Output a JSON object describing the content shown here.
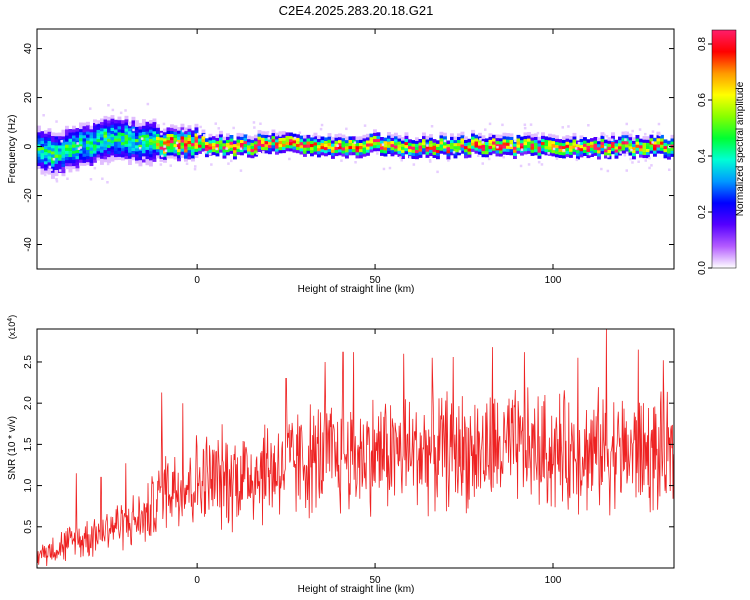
{
  "figure": {
    "title": "C2E4.2025.283.20.18.G21"
  },
  "chart_data": [
    {
      "type": "heatmap",
      "xlabel": "Height of straight line (km)",
      "ylabel": "Frequency (Hz)",
      "xlim": [
        -45,
        134
      ],
      "ylim": [
        -50,
        48
      ],
      "xticks": [
        0,
        50,
        100
      ],
      "yticks": [
        -40,
        -20,
        0,
        20,
        40
      ],
      "description_band": "Doppler-frequency track near 0 Hz across the whole height range; broader spread (about -10 to +10 Hz) below 0 km, narrower (about +/-3 Hz) above.",
      "band_center": [
        [
          -45,
          -1
        ],
        [
          -40,
          -3
        ],
        [
          -35,
          -1
        ],
        [
          -30,
          1
        ],
        [
          -25,
          3
        ],
        [
          -20,
          3
        ],
        [
          -15,
          2
        ],
        [
          -10,
          1
        ],
        [
          0,
          1
        ],
        [
          10,
          0
        ],
        [
          20,
          1
        ],
        [
          30,
          1
        ],
        [
          40,
          0
        ],
        [
          50,
          1
        ],
        [
          60,
          0
        ],
        [
          70,
          0
        ],
        [
          80,
          1
        ],
        [
          90,
          0
        ],
        [
          100,
          0
        ],
        [
          110,
          0
        ],
        [
          120,
          0
        ],
        [
          134,
          0
        ]
      ],
      "colorbar": {
        "label": "Normalized spectral amplitude",
        "range": [
          0.0,
          0.85
        ],
        "ticks": [
          0.0,
          0.2,
          0.4,
          0.6,
          0.8
        ],
        "tick_labels": [
          "0.0",
          "0.2",
          "0.4",
          "0.6",
          "0.8"
        ],
        "colormap": [
          "#ffffff",
          "#b45cff",
          "#5500ff",
          "#0000ff",
          "#0099ff",
          "#00ffd5",
          "#00ff33",
          "#88ff00",
          "#ffff00",
          "#ff9900",
          "#ff0000",
          "#ff1e6b"
        ]
      }
    },
    {
      "type": "line",
      "xlabel": "Height of straight line (km)",
      "ylabel": "SNR (10 * v/v)",
      "multiplier": "(x10",
      "multiplier_exp": "4",
      "multiplier_close": ")",
      "xlim": [
        -45,
        134
      ],
      "ylim": [
        0,
        2.9
      ],
      "xticks": [
        0,
        50,
        100
      ],
      "yticks": [
        0.5,
        1.0,
        1.5,
        2.0,
        2.5
      ],
      "ytick_labels": [
        "0.5",
        "1.0",
        "1.5",
        "2.0",
        "2.5"
      ],
      "series": [
        {
          "name": "SNR",
          "color": "#ee2222",
          "x": [
            -45,
            -40,
            -35,
            -30,
            -25,
            -20,
            -15,
            -11,
            -10,
            -5,
            0,
            10,
            20,
            30,
            40,
            50,
            60,
            70,
            80,
            90,
            100,
            110,
            115,
            120,
            125,
            130,
            134
          ],
          "values": [
            0.15,
            0.25,
            0.3,
            0.4,
            0.5,
            0.55,
            0.6,
            0.8,
            1.0,
            1.0,
            1.05,
            1.1,
            1.2,
            1.3,
            1.35,
            1.4,
            1.4,
            1.45,
            1.4,
            1.45,
            1.4,
            1.4,
            1.45,
            1.4,
            1.4,
            1.35,
            1.3
          ],
          "peaks": [
            [
              -34,
              1.15
            ],
            [
              -27,
              1.1
            ],
            [
              -20,
              1.27
            ],
            [
              -10,
              2.13
            ],
            [
              -4,
              2.0
            ],
            [
              25,
              2.3
            ],
            [
              36,
              2.5
            ],
            [
              41,
              2.62
            ],
            [
              44,
              2.62
            ],
            [
              58,
              2.6
            ],
            [
              66,
              2.55
            ],
            [
              72,
              2.56
            ],
            [
              83,
              2.68
            ],
            [
              92,
              2.62
            ],
            [
              107,
              2.55
            ],
            [
              115,
              2.9
            ],
            [
              124,
              2.65
            ],
            [
              131,
              2.52
            ]
          ],
          "spread": [
            [
              -45,
              0.15
            ],
            [
              -35,
              0.3
            ],
            [
              -25,
              0.35
            ],
            [
              -15,
              0.4
            ],
            [
              -10,
              0.6
            ],
            [
              0,
              0.7
            ],
            [
              20,
              0.8
            ],
            [
              40,
              0.85
            ],
            [
              134,
              0.85
            ]
          ]
        }
      ]
    }
  ]
}
